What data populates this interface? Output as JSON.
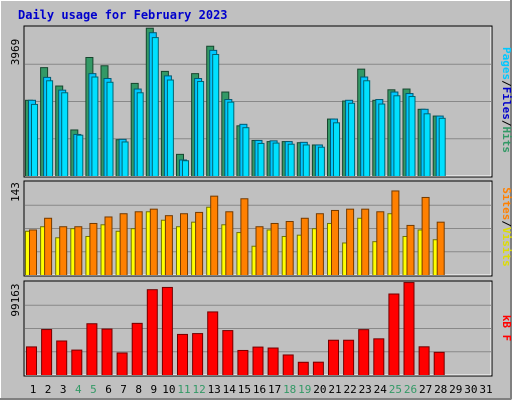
{
  "chart_data": {
    "type": "bar",
    "title": "Daily usage for February 2023",
    "categories": [
      "1",
      "2",
      "3",
      "4",
      "5",
      "6",
      "7",
      "8",
      "9",
      "10",
      "11",
      "12",
      "13",
      "14",
      "15",
      "16",
      "17",
      "18",
      "19",
      "20",
      "21",
      "22",
      "23",
      "24",
      "25",
      "26",
      "27",
      "28",
      "29",
      "30",
      "31"
    ],
    "weekend_days": [
      "4",
      "5",
      "11",
      "12",
      "18",
      "19",
      "25",
      "26"
    ],
    "panels": [
      {
        "max_label": "3969",
        "ylim": [
          0,
          3969
        ],
        "legend": [
          "Pages",
          "Files",
          "Hits"
        ],
        "series": [
          {
            "name": "Hits",
            "color": "#00c8ff",
            "values": [
              2030,
              2640,
              2300,
              1120,
              2740,
              2610,
              990,
              2330,
              3830,
              2680,
              440,
              2610,
              3360,
              2050,
              1390,
              960,
              950,
              930,
              910,
              840,
              1530,
              2030,
              2650,
              2050,
              2250,
              2210,
              1790,
              1610
            ]
          },
          {
            "name": "Files",
            "color": "#00e0ff",
            "values": [
              1920,
              2550,
              2230,
              1100,
              2650,
              2510,
              920,
              2230,
              3700,
              2570,
              420,
              2530,
              3250,
              1980,
              1300,
              880,
              890,
              860,
              840,
              780,
              1430,
              1950,
              2550,
              1930,
              2150,
              2130,
              1670,
              1550
            ]
          },
          {
            "name": "Pages",
            "color": "#339966",
            "values": [
              2030,
              2900,
              2410,
              1240,
              3170,
              2950,
              980,
              2480,
              3950,
              2800,
              590,
              2740,
              3470,
              2250,
              1350,
              960,
              930,
              930,
              900,
              840,
              1530,
              2010,
              2860,
              2030,
              2310,
              2330,
              1790,
              1610
            ]
          }
        ]
      },
      {
        "max_label": "143",
        "ylim": [
          0,
          143
        ],
        "legend": [
          "Sites",
          "Visits"
        ],
        "series": [
          {
            "name": "Visits",
            "color": "#ffff00",
            "values": [
              68,
              75,
              58,
              72,
              60,
              78,
              68,
              72,
              98,
              85,
              75,
              82,
              105,
              78,
              66,
              45,
              70,
              60,
              62,
              72,
              80,
              50,
              88,
              52,
              95,
              60,
              70,
              55
            ]
          },
          {
            "name": "Sites",
            "color": "#ff8000",
            "values": [
              70,
              88,
              75,
              75,
              80,
              90,
              95,
              98,
              102,
              92,
              95,
              97,
              122,
              98,
              118,
              75,
              80,
              83,
              88,
              95,
              100,
              102,
              102,
              98,
              130,
              77,
              120,
              82
            ]
          }
        ]
      },
      {
        "max_label": "99163",
        "ylim": [
          0,
          99163
        ],
        "legend": [
          "KBytes"
        ],
        "series": [
          {
            "name": "KBytes",
            "color": "#ff0000",
            "values": [
              30500,
              49000,
              36800,
              27100,
              55200,
              49500,
              24000,
              55600,
              91500,
              93900,
              43800,
              44700,
              67800,
              47900,
              26700,
              30300,
              29300,
              21900,
              14100,
              14200,
              37600,
              37600,
              48900,
              39100,
              86900,
              99100,
              30600,
              24700
            ]
          }
        ]
      }
    ]
  }
}
